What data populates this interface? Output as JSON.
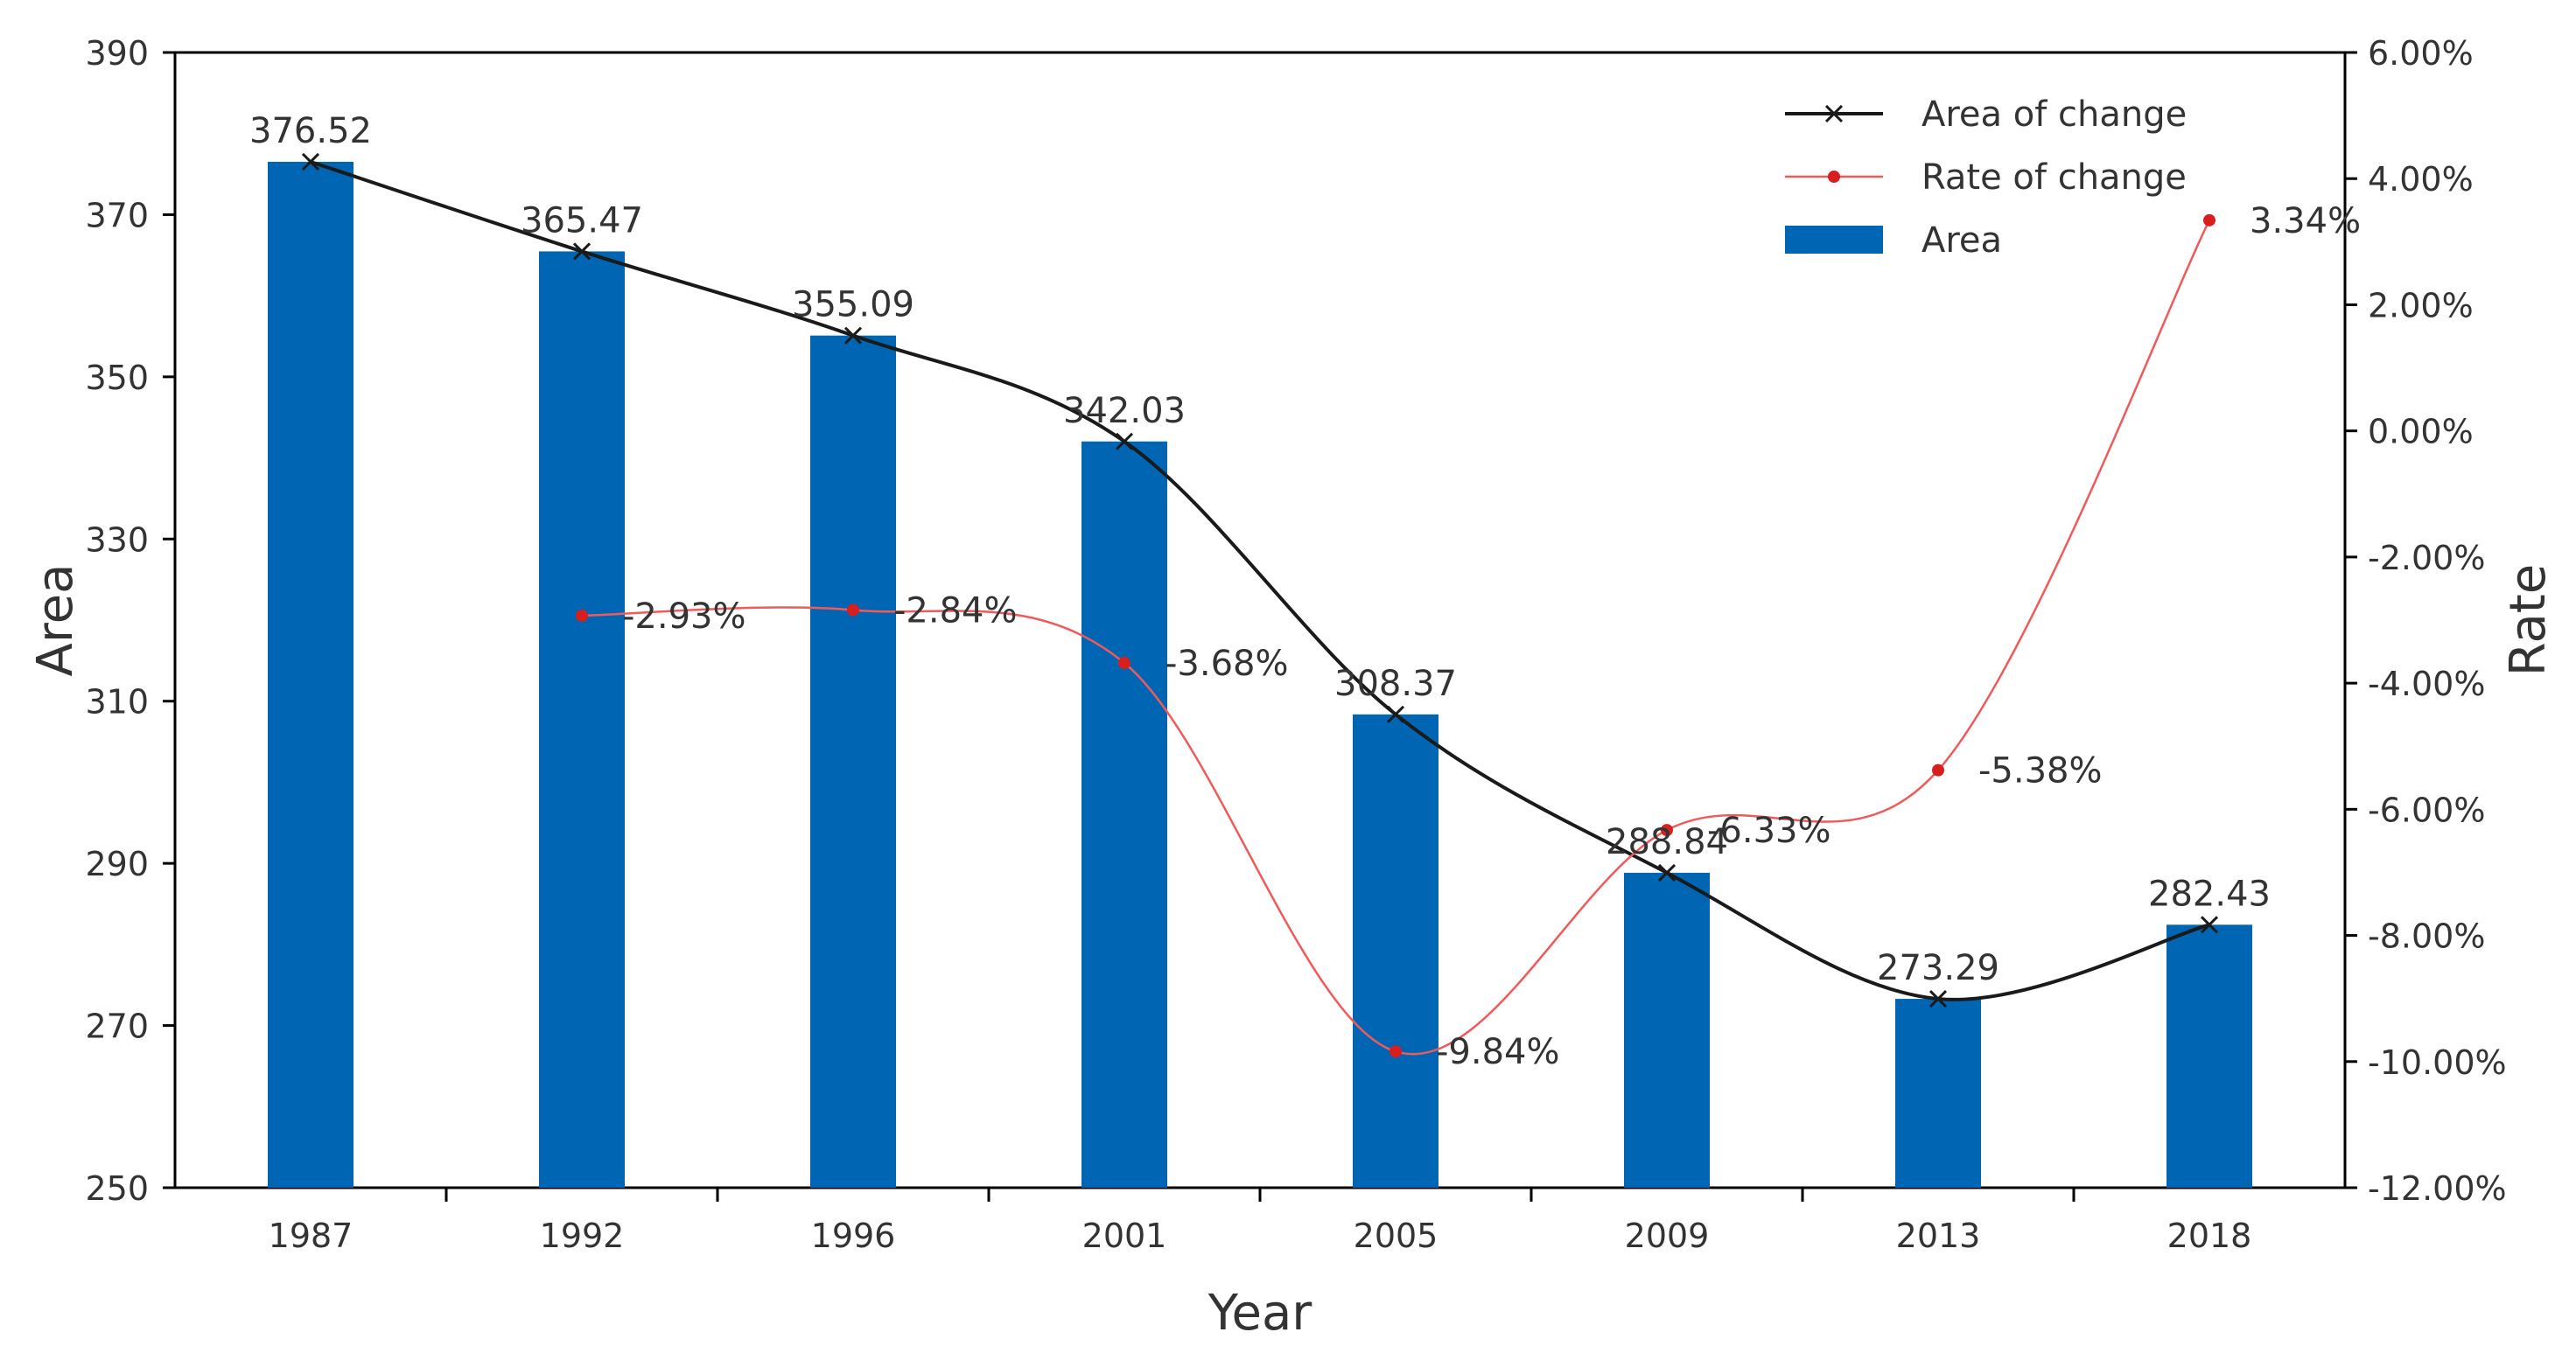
{
  "chart_data": {
    "type": "bar",
    "categories": [
      "1987",
      "1992",
      "1996",
      "2001",
      "2005",
      "2009",
      "2013",
      "2018"
    ],
    "series": [
      {
        "name": "Area",
        "type": "bar",
        "axis": "left",
        "values": [
          376.52,
          365.47,
          355.09,
          342.03,
          308.37,
          288.84,
          273.29,
          282.43
        ],
        "labels": [
          "376.52",
          "365.47",
          "355.09",
          "342.03",
          "308.37",
          "288.84",
          "273.29",
          "282.43"
        ]
      },
      {
        "name": "Area of change",
        "type": "line",
        "axis": "left",
        "marker": "x",
        "values": [
          376.52,
          365.47,
          355.09,
          342.03,
          308.37,
          288.84,
          273.29,
          282.43
        ]
      },
      {
        "name": "Rate of change",
        "type": "line",
        "axis": "right",
        "marker": "dot",
        "values": [
          null,
          -2.93,
          -2.84,
          -3.68,
          -9.84,
          -6.33,
          -5.38,
          3.34
        ],
        "labels": [
          null,
          "-2.93%",
          "-2.84%",
          "-3.68%",
          "-9.84%",
          "-6.33%",
          "-5.38%",
          "3.34%"
        ]
      }
    ],
    "xlabel": "Year",
    "ylabel": "Area",
    "y2label": "Rate",
    "ylim": [
      250,
      390
    ],
    "yticks": [
      "250",
      "270",
      "290",
      "310",
      "330",
      "350",
      "370",
      "390"
    ],
    "y2lim": [
      -12,
      6
    ],
    "y2ticks": [
      "-12.00%",
      "-10.00%",
      "-8.00%",
      "-6.00%",
      "-4.00%",
      "-2.00%",
      "0.00%",
      "2.00%",
      "4.00%",
      "6.00%"
    ],
    "legend": {
      "position": "top-right",
      "entries": [
        "Area of change",
        "Rate of change",
        "Area"
      ]
    },
    "colors": {
      "bar": "#0066b3",
      "area_line": "#1a1a1a",
      "rate_line": "#f05a5a",
      "rate_marker": "#d91e1e"
    }
  }
}
